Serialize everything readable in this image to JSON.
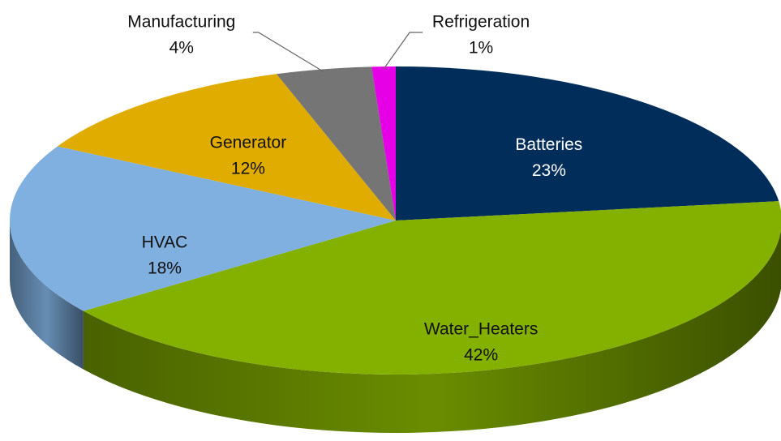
{
  "chart_data": {
    "type": "pie3d",
    "categories": [
      "Batteries",
      "Water_Heaters",
      "HVAC",
      "Generator",
      "Manufacturing",
      "Refrigeration"
    ],
    "values": [
      23,
      42,
      18,
      12,
      4,
      1
    ],
    "value_labels": [
      "23%",
      "42%",
      "18%",
      "12%",
      "4%",
      "1%"
    ],
    "colors": [
      "#002d59",
      "#84b000",
      "#7fb0e0",
      "#e0ac00",
      "#757575",
      "#e600e6"
    ]
  }
}
